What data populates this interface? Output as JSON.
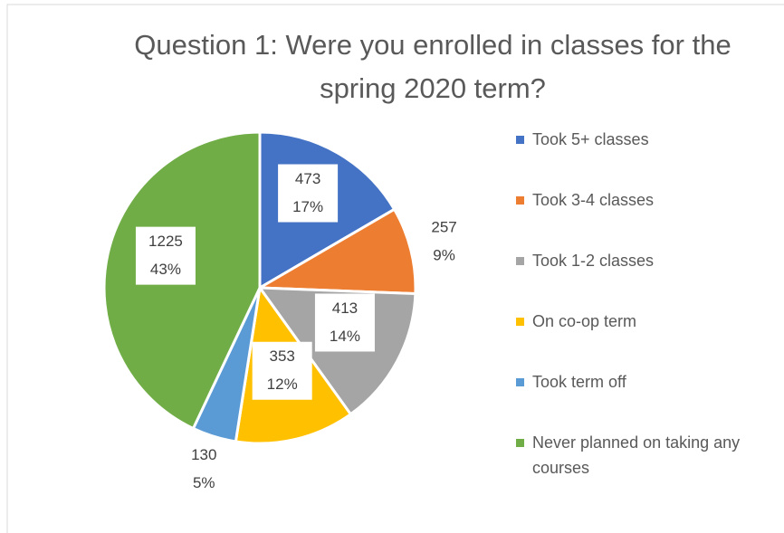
{
  "chart_data": {
    "type": "pie",
    "title": "Question 1: Were you enrolled in classes for the spring 2020 term?",
    "categories": [
      "Took 5+ classes",
      "Took 3-4 classes",
      "Took 1-2 classes",
      "On co-op term",
      "Took term off",
      "Never planned on taking any courses"
    ],
    "values": [
      473,
      257,
      413,
      353,
      130,
      1225
    ],
    "percent_labels": [
      "17%",
      "9%",
      "14%",
      "12%",
      "5%",
      "43%"
    ],
    "colors": [
      "#4472c4",
      "#ed7d31",
      "#a5a5a5",
      "#ffc000",
      "#5b9bd5",
      "#70ad47"
    ],
    "legend": "right"
  }
}
